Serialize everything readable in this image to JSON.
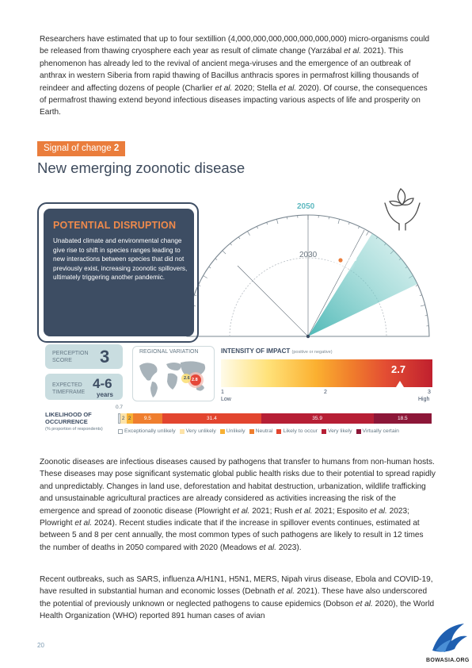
{
  "paragraph1": {
    "t1": "Researchers have estimated that up to four sextillion (4,000,000,000,000,000,000,000) micro-organisms could be released from thawing cryosphere each year as result of climate change (Yarzábal ",
    "i1": "et al.",
    "t2": " 2021). This phenomenon has already led to the revival of ancient mega-viruses and the emergence of an outbreak of anthrax in western Siberia from rapid thawing of Bacillus anthracis spores in permafrost killing thousands of reindeer and affecting dozens of people (Charlier ",
    "i2": "et al.",
    "t3": " 2020; Stella ",
    "i3": "et al.",
    "t4": " 2020). Of course, the consequences of permafrost thawing extend beyond infectious diseases impacting various aspects of life and prosperity on Earth."
  },
  "signal": {
    "label": "Signal of change",
    "number": "2"
  },
  "section_title": "New emerging zoonotic disease",
  "disruption": {
    "title": "POTENTIAL DISRUPTION",
    "text": "Unabated climate and environmental change give rise to shift in species ranges leading to new interactions between species that did not previously exist, increasing zoonotic spillovers, ultimately triggering another pandemic."
  },
  "gauge": {
    "year_top": "2050",
    "year_mid": "2030",
    "year_marker": "2030"
  },
  "perception": {
    "label_1": "PERCEPTION",
    "label_2": "SCORE",
    "value": "3"
  },
  "timeframe": {
    "label_1": "EXPECTED",
    "label_2": "TIMEFRAME",
    "value": "4-6",
    "unit": "years"
  },
  "regional": {
    "label": "REGIONAL VARIATION",
    "value_a": "2.6",
    "value_b": "2.8"
  },
  "impact": {
    "title": "INTENSITY OF IMPACT",
    "subtitle": "(positive or negative)",
    "value": "2.7",
    "tick_1": "1",
    "tick_2": "2",
    "tick_3": "3",
    "low": "Low",
    "high": "High"
  },
  "likelihood": {
    "title_1": "LIKELIHOOD OF",
    "title_2": "OCCURRENCE",
    "subtitle": "(% proportion of respondents)",
    "above_label": "0.7",
    "segments": [
      {
        "label": "Exceptionally unlikely",
        "value": 0.7,
        "text": "",
        "color": "#ffffff"
      },
      {
        "label": "Very unlikely",
        "value": 2,
        "text": "2",
        "color": "#fde3a8"
      },
      {
        "label": "Unlikely",
        "value": 2,
        "text": "2",
        "color": "#f8b133"
      },
      {
        "label": "Neutral",
        "value": 9.5,
        "text": "9.5",
        "color": "#ef7e2e"
      },
      {
        "label": "Likely to occur",
        "value": 31.4,
        "text": "31.4",
        "color": "#e2452f"
      },
      {
        "label": "Very likely",
        "value": 35.9,
        "text": "35.9",
        "color": "#b61f35"
      },
      {
        "label": "Virtually certain",
        "value": 18.5,
        "text": "18.5",
        "color": "#8c1738"
      }
    ]
  },
  "paragraph2": {
    "t1": "Zoonotic diseases are infectious diseases caused by pathogens that transfer to humans from non-human hosts. These diseases may pose significant systematic global public health risks due to their potential to spread rapidly and unpredictably. Changes in land use, deforestation and habitat destruction, urbanization, wildlife trafficking and unsustainable agricultural practices are already considered as activities increasing the risk of the emergence and spread of zoonotic disease (Plowright ",
    "i1": "et al.",
    "t2": " 2021; Rush ",
    "i2": "et al.",
    "t3": " 2021; Esposito ",
    "i3": "et al.",
    "t4": " 2023; Plowright ",
    "i4": "et al.",
    "t5": " 2024). Recent studies indicate that if the increase in spillover events continues, estimated at between 5 and 8 per cent annually, the most common types of such pathogens are likely to result in 12 times the number of deaths in 2050 compared with 2020 (Meadows ",
    "i5": "et al.",
    "t6": " 2023)."
  },
  "paragraph3": {
    "t1": "Recent outbreaks, such as SARS, influenza A/H1N1, H5N1, MERS, Nipah virus disease, Ebola and COVID-19, have resulted in substantial human and economic losses (Debnath ",
    "i1": "et al.",
    "t2": " 2021). These have also underscored the potential of previously unknown or neglected pathogens to cause epidemics (Dobson ",
    "i2": "et al.",
    "t3": " 2020), the World Health Organization (WHO) reported 891 human cases of avian"
  },
  "page_number": "20",
  "watermark": "BOWASIA.ORG"
}
